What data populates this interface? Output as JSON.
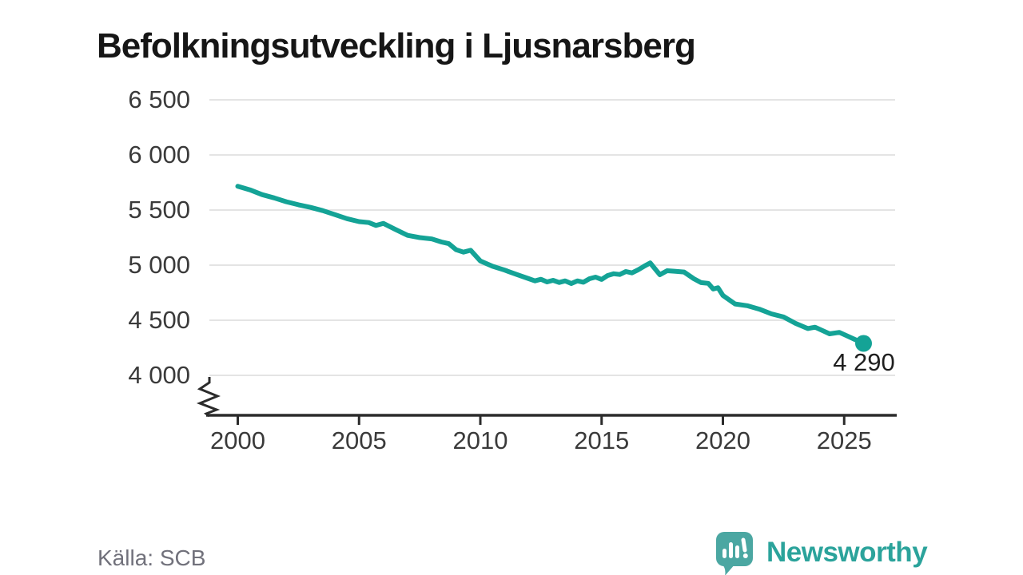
{
  "header": {
    "title": "Befolkningsutveckling i Ljusnarsberg"
  },
  "footer": {
    "source": "Källa: SCB",
    "brand": {
      "name": "Newsworthy",
      "icon": "newsworthy-speech-bubble-bars-icon"
    }
  },
  "colors": {
    "background": "#ffffff",
    "title": "#161616",
    "line": "#14A396",
    "grid": "#e4e4e4",
    "axis": "#2b2b2b",
    "tick_label": "#3a3a3a",
    "end_label": "#1f1f1f",
    "source_text": "#71717b",
    "logo_bubble": "#4BA7A2",
    "wordmark": "#2BA39B"
  },
  "chart_data": {
    "type": "line",
    "title": "Befolkningsutveckling i Ljusnarsberg",
    "legend": "none",
    "grid": true,
    "x_axis": {
      "ticks": [
        2000,
        2005,
        2010,
        2015,
        2020,
        2025
      ],
      "range_years": [
        1998.8,
        2027.1
      ],
      "axis_break_at_origin": true
    },
    "y_axis": {
      "ticks": [
        6500,
        6000,
        5500,
        5000,
        4500,
        4000
      ],
      "tick_labels": [
        "6 500",
        "6 000",
        "5 500",
        "5 000",
        "4 500",
        "4 000"
      ],
      "range": [
        4000,
        6500
      ]
    },
    "series": [
      {
        "name": "Befolkning",
        "color": "#14A396",
        "end_label": "4 290",
        "end_value": 4290,
        "x": [
          2000.0,
          2000.5,
          2001.0,
          2001.5,
          2002.0,
          2002.5,
          2003.0,
          2003.5,
          2004.0,
          2004.5,
          2005.0,
          2005.4,
          2005.7,
          2006.0,
          2006.5,
          2007.0,
          2007.5,
          2008.0,
          2008.4,
          2008.7,
          2009.0,
          2009.3,
          2009.6,
          2010.0,
          2010.5,
          2011.0,
          2011.5,
          2012.0,
          2012.25,
          2012.5,
          2012.75,
          2013.0,
          2013.25,
          2013.5,
          2013.75,
          2014.0,
          2014.25,
          2014.5,
          2014.75,
          2015.0,
          2015.25,
          2015.5,
          2015.75,
          2016.0,
          2016.25,
          2016.5,
          2016.75,
          2017.0,
          2017.4,
          2017.7,
          2018.0,
          2018.4,
          2018.8,
          2019.1,
          2019.4,
          2019.6,
          2019.8,
          2020.0,
          2020.5,
          2021.0,
          2021.5,
          2022.0,
          2022.5,
          2023.0,
          2023.5,
          2023.8,
          2024.1,
          2024.4,
          2024.8,
          2025.1,
          2025.4,
          2025.8
        ],
        "y": [
          5715,
          5683,
          5640,
          5610,
          5575,
          5548,
          5524,
          5495,
          5459,
          5422,
          5395,
          5386,
          5360,
          5379,
          5324,
          5270,
          5250,
          5238,
          5210,
          5195,
          5140,
          5118,
          5135,
          5038,
          4990,
          4955,
          4915,
          4877,
          4857,
          4872,
          4848,
          4862,
          4843,
          4857,
          4833,
          4857,
          4845,
          4877,
          4891,
          4870,
          4906,
          4922,
          4915,
          4942,
          4930,
          4957,
          4990,
          5020,
          4913,
          4949,
          4945,
          4938,
          4877,
          4841,
          4835,
          4783,
          4795,
          4725,
          4648,
          4632,
          4601,
          4558,
          4530,
          4471,
          4425,
          4437,
          4407,
          4377,
          4390,
          4360,
          4330,
          4290
        ]
      }
    ]
  }
}
